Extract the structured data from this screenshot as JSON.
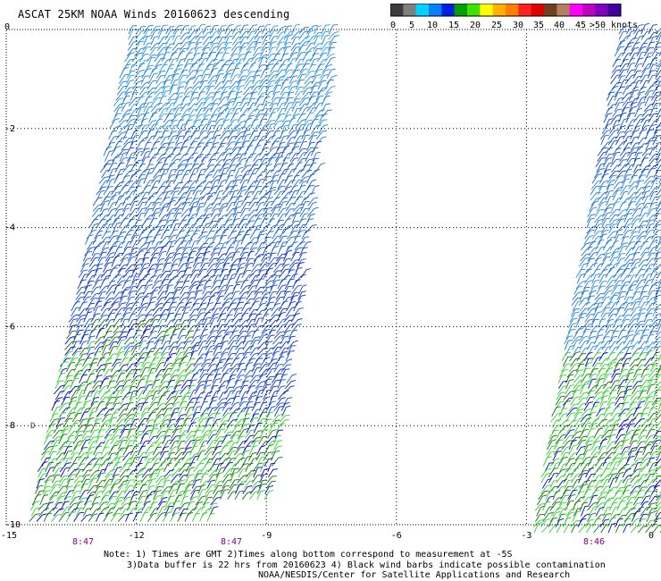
{
  "title": "ASCAT 25KM NOAA Winds 20160623 descending",
  "legend": {
    "labels": [
      "0",
      "5",
      "10",
      "15",
      "20",
      "25",
      "30",
      "35",
      "40",
      "45",
      ">50 knots"
    ],
    "colors": [
      "#3c3c3c",
      "#7f7f7f",
      "#00d2ff",
      "#0080ff",
      "#0020e0",
      "#00a000",
      "#40e000",
      "#ffff00",
      "#ffb000",
      "#ff8000",
      "#ff2020",
      "#e00000",
      "#704020",
      "#b08060",
      "#ff00ff",
      "#c000c0",
      "#8000c0",
      "#4000a0"
    ]
  },
  "axes": {
    "y_labels": [
      "0",
      "-2",
      "-4",
      "-6",
      "-8",
      "-10"
    ],
    "x_labels": [
      "-15",
      "-12",
      "-9",
      "-6",
      "-3",
      "0"
    ],
    "time_labels": [
      "8:47",
      "8:47",
      "8:46"
    ]
  },
  "marker": "D",
  "notes": [
    "Note: 1) Times are GMT 2)Times along bottom correspond to measurement at -5S",
    "3)Data buffer is 22 hrs from 20160623 4) Black wind barbs indicate possible contamination",
    "NOAA/NESDIS/Center for Satellite Applications and Research"
  ]
}
